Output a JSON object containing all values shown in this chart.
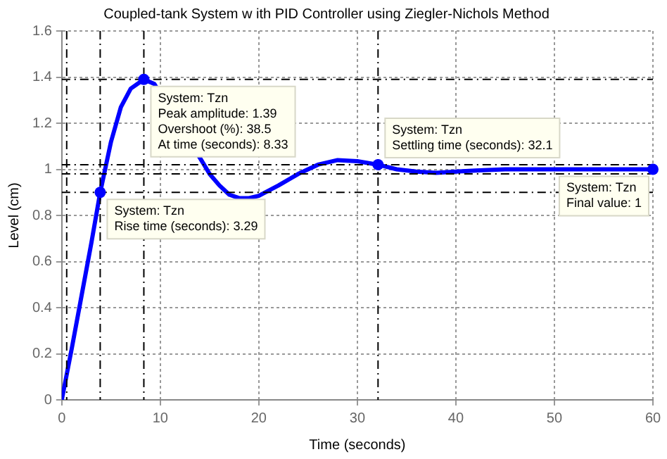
{
  "chart_data": {
    "type": "line",
    "title": "Coupled-tank System w ith PID Controller using Ziegler-Nichols Method",
    "xlabel": "Time (seconds)",
    "ylabel": "Level (cm)",
    "x": [
      0,
      1,
      2,
      3,
      3.9,
      5,
      6,
      7,
      8.33,
      9.4,
      14.3,
      15,
      16,
      17,
      18,
      19,
      20,
      22,
      24,
      26,
      28,
      30,
      32.1,
      34,
      36,
      38,
      40,
      42,
      45,
      50,
      55,
      60
    ],
    "series": [
      {
        "color": "#0000ff",
        "values": [
          0,
          0.22,
          0.45,
          0.68,
          0.9,
          1.12,
          1.27,
          1.35,
          1.39,
          1.37,
          1.03,
          0.98,
          0.93,
          0.89,
          0.875,
          0.875,
          0.885,
          0.93,
          0.98,
          1.02,
          1.04,
          1.035,
          1.02,
          1.0,
          0.99,
          0.985,
          0.99,
          0.995,
          1.0,
          1.0,
          1.0,
          1.0
        ]
      }
    ],
    "xlim": [
      0,
      60
    ],
    "xticks": [
      0,
      10,
      20,
      30,
      40,
      50,
      60
    ],
    "ylim": [
      0,
      1.6
    ],
    "yticks": [
      0,
      0.2,
      0.4,
      0.6,
      0.8,
      1,
      1.2,
      1.4,
      1.6
    ],
    "grid": true,
    "legend": false,
    "marker": "none",
    "line_style": "solid",
    "ref_lines": [
      {
        "axis": "y",
        "value": 1.39,
        "color": "#000000",
        "line_style": "dashed"
      },
      {
        "axis": "x",
        "value": 8.33,
        "color": "#000000",
        "line_style": "dashed"
      },
      {
        "axis": "y",
        "value": 0.9,
        "color": "#000000",
        "line_style": "dashed"
      },
      {
        "axis": "x",
        "value": 3.9,
        "color": "#000000",
        "line_style": "dashed"
      },
      {
        "axis": "x",
        "value": 0.5,
        "color": "#000000",
        "line_style": "dashed"
      },
      {
        "axis": "y",
        "value": 1.02,
        "color": "#000000",
        "line_style": "dashed"
      },
      {
        "axis": "y",
        "value": 0.98,
        "color": "#000000",
        "line_style": "dashed"
      },
      {
        "axis": "x",
        "value": 32.1,
        "color": "#000000",
        "line_style": "dashed"
      }
    ],
    "annotations": [
      {
        "text": "System: Tzn\nRise time (seconds): 3.29",
        "x": 3.9,
        "y": 0.9
      },
      {
        "text": "System: Tzn\nPeak amplitude: 1.39\nOvershoot (%): 38.5\nAt time (seconds): 8.33",
        "x": 8.33,
        "y": 1.39
      },
      {
        "text": "System: Tzn\nSettling time (seconds): 32.1",
        "x": 32.1,
        "y": 1.02
      },
      {
        "text": "System: Tzn\nFinal value: 1",
        "x": 60,
        "y": 1
      }
    ]
  }
}
